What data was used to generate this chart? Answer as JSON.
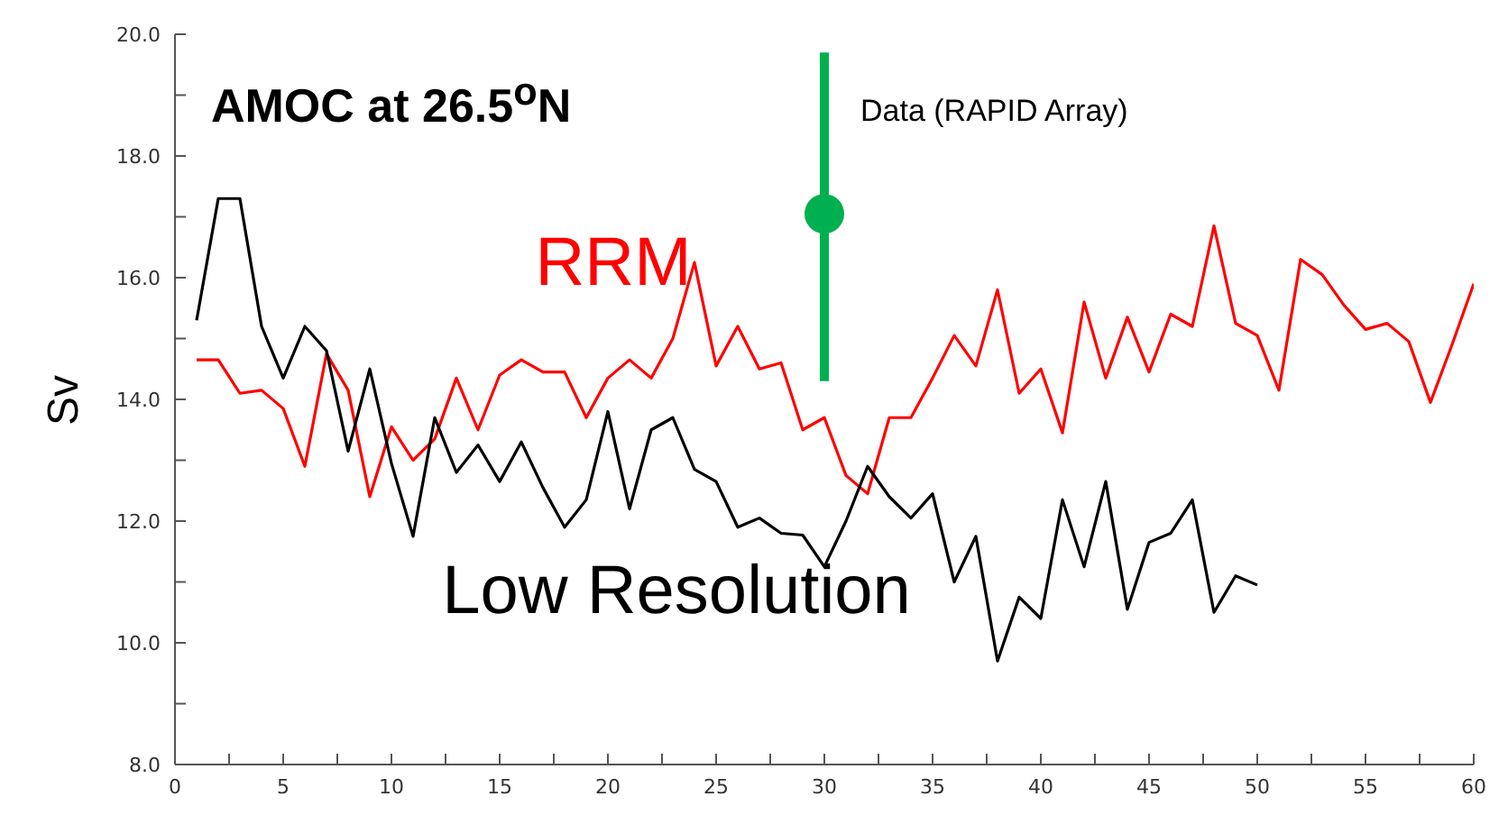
{
  "chart_data": {
    "type": "line",
    "title": "AMOC at 26.5$^{o}$N",
    "ylabel": "Sv",
    "xlim": [
      0,
      60
    ],
    "xticks": [
      0,
      {
        "value": 2.5,
        "label": null
      },
      5,
      {
        "value": 7.5,
        "label": null
      },
      10,
      {
        "value": 12.5,
        "label": null
      },
      15,
      {
        "value": 17.5,
        "label": null
      },
      20,
      {
        "value": 22.5,
        "label": null
      },
      25,
      {
        "value": 27.5,
        "label": null
      },
      30,
      {
        "value": 32.5,
        "label": null
      },
      35,
      {
        "value": 37.5,
        "label": null
      },
      40,
      {
        "value": 42.5,
        "label": null
      },
      45,
      {
        "value": 47.5,
        "label": null
      },
      50,
      {
        "value": 52.5,
        "label": null
      },
      55,
      {
        "value": 57.5,
        "label": null
      },
      60
    ],
    "ylim": [
      8,
      20
    ],
    "yticks": [
      {
        "value": 8,
        "label": "8.0"
      },
      {
        "value": 9,
        "label": null
      },
      {
        "value": 10,
        "label": "10.0"
      },
      {
        "value": 11,
        "label": null
      },
      {
        "value": 12,
        "label": "12.0"
      },
      {
        "value": 13,
        "label": null
      },
      {
        "value": 14,
        "label": "14.0"
      },
      {
        "value": 15,
        "label": null
      },
      {
        "value": 16,
        "label": "16.0"
      },
      {
        "value": 17,
        "label": null
      },
      {
        "value": 18,
        "label": "18.0"
      },
      {
        "value": 19,
        "label": null
      },
      {
        "value": 20,
        "label": "20.0"
      }
    ],
    "grid": false,
    "marker": "none",
    "annotations": [
      {
        "text": "Data (RAPID Array)",
        "x": 30,
        "y": 18.7
      }
    ],
    "line_style": "solid",
    "series": [
      {
        "name": "RRM",
        "color": "#ff0000",
        "x": [
          1,
          2,
          3,
          4,
          5,
          6,
          7,
          8,
          9,
          10,
          11,
          12,
          13,
          14,
          15,
          16,
          17,
          18,
          19,
          20,
          21,
          22,
          23,
          24,
          25,
          26,
          27,
          28,
          29,
          30,
          31,
          32,
          33,
          34,
          35,
          36,
          37,
          38,
          39,
          40,
          41,
          42,
          43,
          44,
          45,
          46,
          47,
          48,
          49,
          50,
          51,
          52,
          53,
          54,
          55,
          56,
          57,
          58,
          59,
          60
        ],
        "values": [
          14.65,
          14.65,
          14.1,
          14.15,
          13.85,
          12.9,
          14.75,
          14.15,
          12.4,
          13.55,
          13.0,
          13.35,
          14.35,
          13.5,
          14.4,
          14.65,
          14.45,
          14.45,
          13.7,
          14.35,
          14.65,
          14.35,
          15.0,
          16.25,
          14.55,
          15.2,
          14.5,
          14.6,
          13.5,
          13.7,
          12.75,
          12.45,
          13.7,
          13.7,
          14.35,
          15.05,
          14.55,
          15.8,
          14.1,
          14.5,
          13.45,
          15.6,
          14.35,
          15.35,
          14.45,
          15.4,
          15.2,
          16.85,
          15.25,
          15.05,
          14.15,
          16.3,
          16.05,
          15.55,
          15.15,
          15.25,
          14.95,
          13.95,
          14.9,
          15.9
        ]
      },
      {
        "name": "Low Resolution",
        "color": "#000000",
        "x": [
          1,
          2,
          3,
          4,
          5,
          6,
          7,
          8,
          9,
          10,
          11,
          12,
          13,
          14,
          15,
          16,
          17,
          18,
          19,
          20,
          21,
          22,
          23,
          24,
          25,
          26,
          27,
          28,
          29,
          30,
          31,
          32,
          33,
          34,
          35,
          36,
          37,
          38,
          39,
          40,
          41,
          42,
          43,
          44,
          45,
          46,
          47,
          48,
          49,
          50
        ],
        "values": [
          15.3,
          17.3,
          17.3,
          15.2,
          14.35,
          15.2,
          14.8,
          13.15,
          14.5,
          12.95,
          11.75,
          13.7,
          12.8,
          13.25,
          12.65,
          13.3,
          12.55,
          11.9,
          12.35,
          13.8,
          12.2,
          13.5,
          13.7,
          12.85,
          12.65,
          11.9,
          12.05,
          11.8,
          11.77,
          11.25,
          12.0,
          12.9,
          12.4,
          12.05,
          12.45,
          11.0,
          11.75,
          9.7,
          10.75,
          10.4,
          12.35,
          11.25,
          12.65,
          10.55,
          11.65,
          11.8,
          12.35,
          10.5,
          11.1,
          10.95
        ]
      },
      {
        "type": "scatter",
        "marker": "circle",
        "color": "#00b050",
        "x": [
          30
        ],
        "values": [
          17.05
        ],
        "errors": [
          [
            14.3,
            19.7
          ]
        ]
      }
    ]
  }
}
